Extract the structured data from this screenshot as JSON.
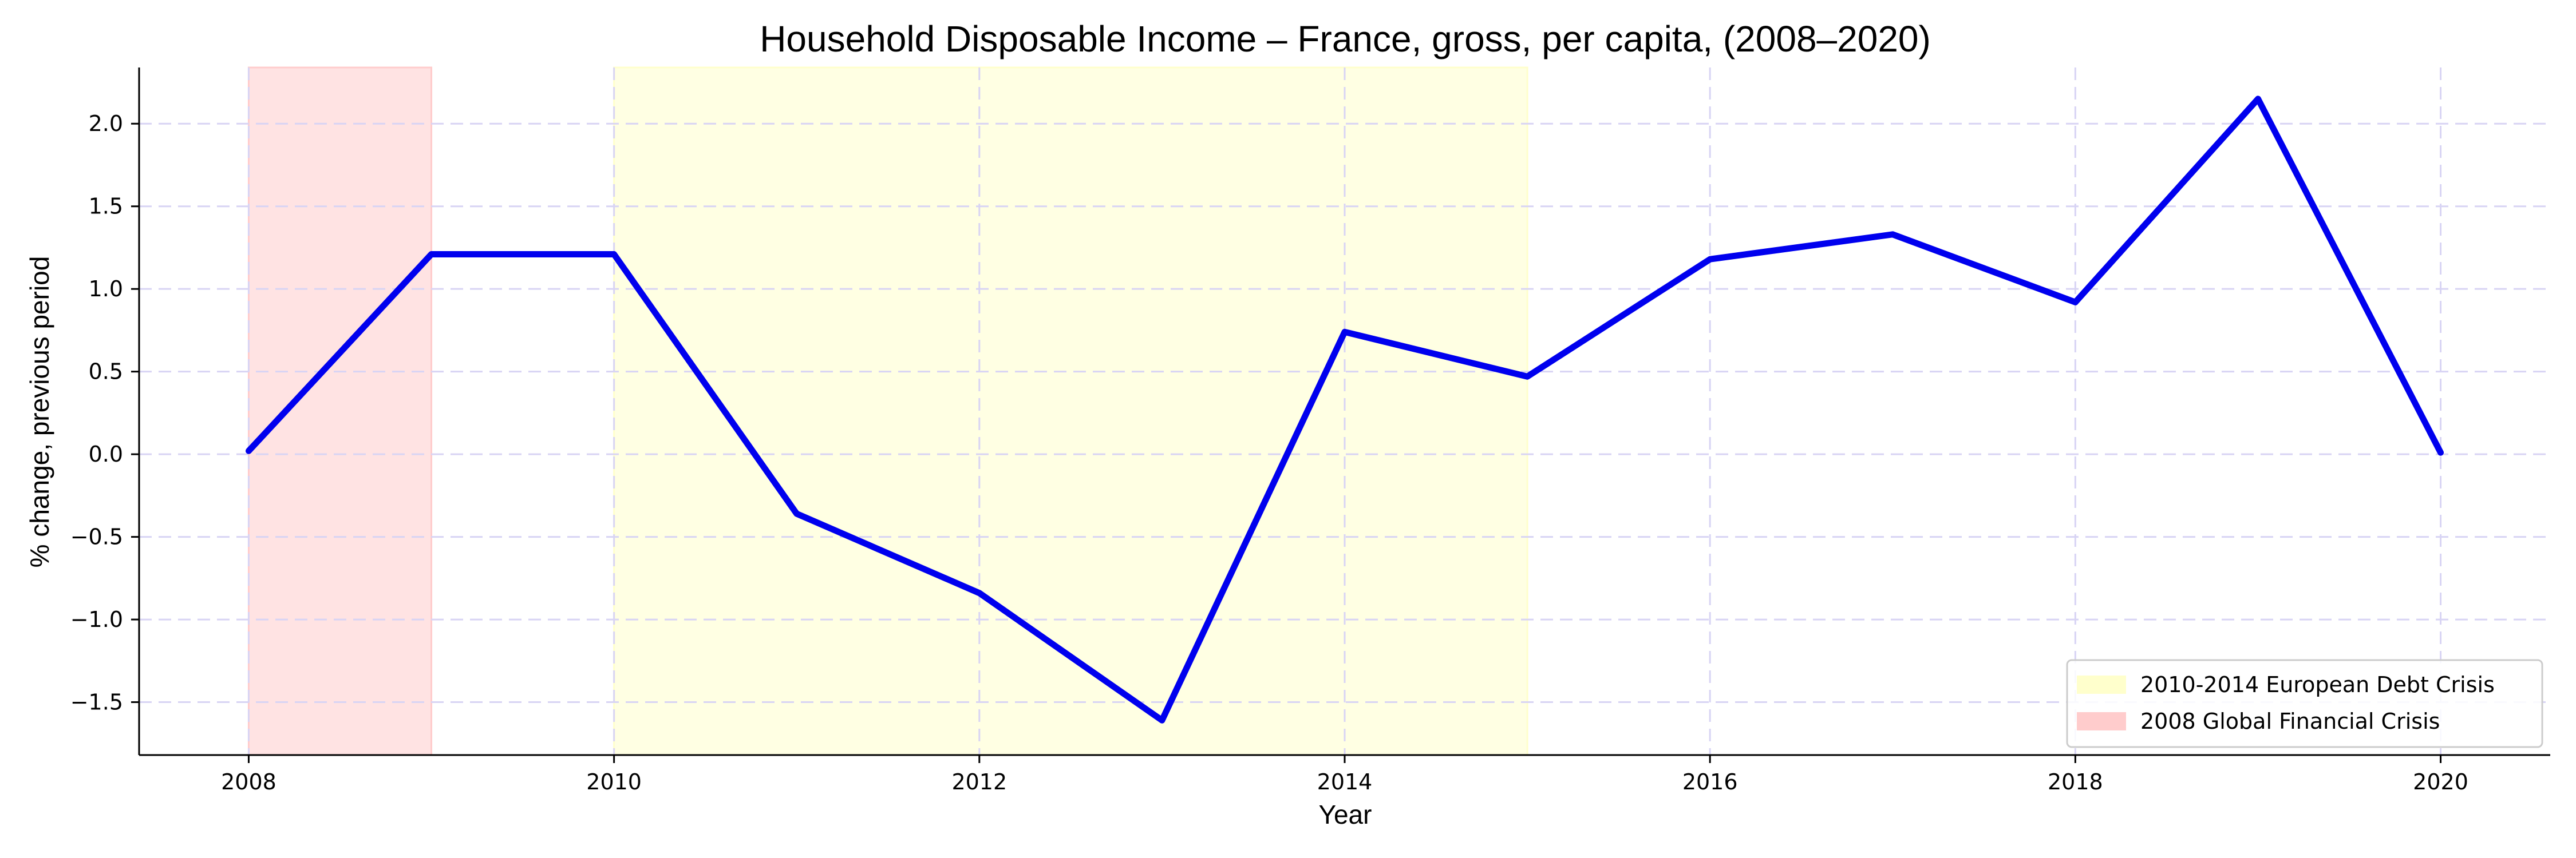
{
  "chart_data": {
    "type": "line",
    "title": "Household Disposable Income – France, gross, per capita, (2008–2020)",
    "xlabel": "Year",
    "ylabel": "% change, previous period",
    "x": [
      2008,
      2009,
      2010,
      2011,
      2012,
      2013,
      2014,
      2015,
      2016,
      2017,
      2018,
      2019,
      2020
    ],
    "series": [
      {
        "values": [
          0.02,
          1.21,
          1.21,
          -0.36,
          -0.84,
          -1.61,
          0.74,
          0.47,
          1.18,
          1.33,
          0.92,
          2.15,
          0.01
        ],
        "color": "#0000ee"
      }
    ],
    "xlim": [
      2007.4,
      2020.6
    ],
    "ylim": [
      -1.82,
      2.34
    ],
    "xticks": [
      2008,
      2010,
      2012,
      2014,
      2016,
      2018,
      2020
    ],
    "yticks": [
      -1.5,
      -1.0,
      -0.5,
      0.0,
      0.5,
      1.0,
      1.5,
      2.0
    ],
    "ytick_labels": [
      "−1.5",
      "−1.0",
      "−0.5",
      "0.0",
      "0.5",
      "1.0",
      "1.5",
      "2.0"
    ],
    "grid": true,
    "grid_color": "#d8d4f4",
    "shaded_periods": [
      {
        "label": "2010-2014 European Debt Crisis",
        "start": 2010,
        "end": 2015,
        "color": "#ffffcc"
      },
      {
        "label": "2008 Global Financial Crisis",
        "start": 2008,
        "end": 2009,
        "color": "#ffcccc"
      }
    ],
    "legend": {
      "placement": "lower-right",
      "entries": [
        "2010-2014 European Debt Crisis",
        "2008 Global Financial Crisis"
      ]
    }
  }
}
